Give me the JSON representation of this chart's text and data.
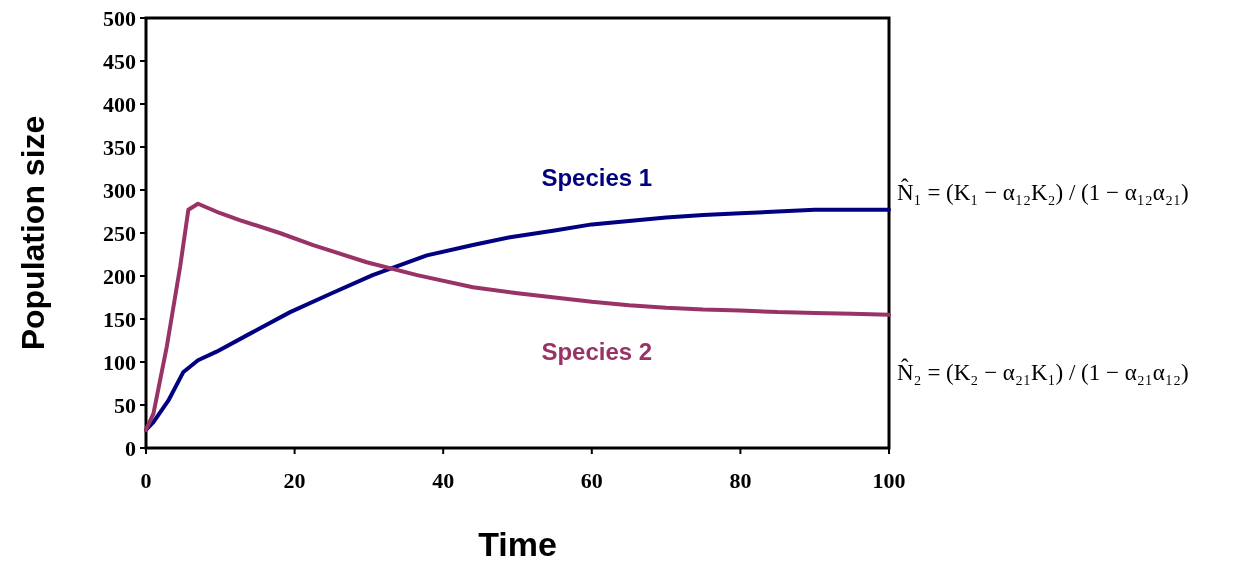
{
  "chart_data": {
    "type": "line",
    "xlabel": "Time",
    "ylabel": "Population size",
    "xlim": [
      0,
      100
    ],
    "xticks": [
      0,
      20,
      40,
      60,
      80,
      100
    ],
    "ylim": [
      0,
      500
    ],
    "yticks": [
      0,
      50,
      100,
      150,
      200,
      250,
      300,
      350,
      400,
      450,
      500
    ],
    "grid": false,
    "legend": false,
    "marker": "none",
    "line_style": "solid",
    "series": [
      {
        "name": "Species 1",
        "color": "#000080",
        "x": [
          0,
          1,
          3,
          5,
          7,
          9.5,
          14,
          19.4,
          25,
          30.5,
          37.8,
          44,
          49,
          55,
          60,
          65,
          70,
          75,
          80,
          85,
          90,
          95,
          100
        ],
        "values": [
          21,
          30,
          55,
          88,
          102,
          112,
          133,
          158,
          180,
          201,
          224,
          236,
          245,
          253,
          260,
          264,
          268,
          271,
          273,
          275,
          277,
          277,
          277
        ]
      },
      {
        "name": "Species 2",
        "color": "#993366",
        "x": [
          0,
          1,
          2.8,
          4.6,
          5.7,
          7,
          10,
          12.6,
          18,
          22.5,
          29.7,
          36.5,
          44,
          50,
          55,
          60,
          65,
          70,
          75,
          80,
          85,
          90,
          95,
          100
        ],
        "values": [
          21,
          40,
          118,
          211,
          277,
          284,
          273,
          265,
          250,
          236,
          216,
          201,
          187,
          180,
          175,
          170,
          166,
          163,
          161,
          160,
          158,
          157,
          156,
          155
        ]
      }
    ],
    "annotations": [
      "N̂₁ = (K₁ − α₁₂K₂) / (1 − α₁₂α₂₁)",
      "N̂₂ = (K₂ − α₂₁K₁) / (1 − α₂₁α₁₂)"
    ]
  }
}
